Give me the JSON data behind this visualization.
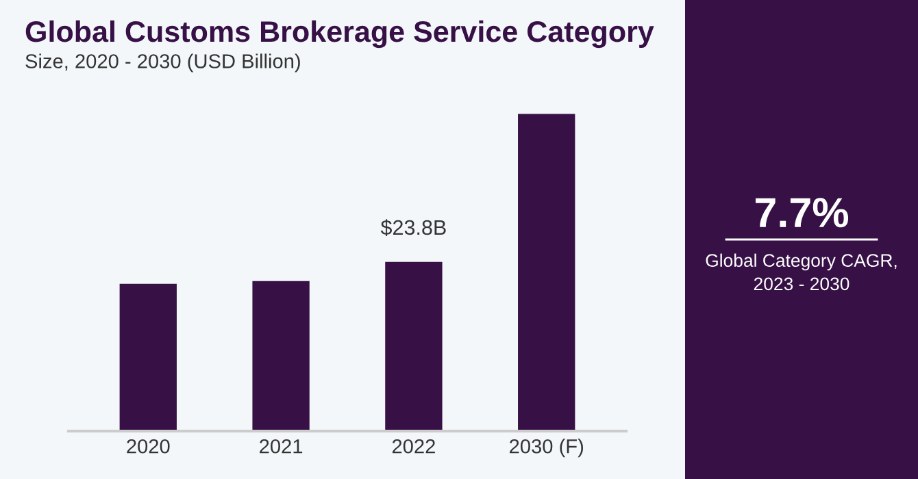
{
  "chart_data": {
    "type": "bar",
    "title": "Global Customs Brokerage Service Category",
    "subtitle": "Size, 2020 - 2030 (USD Billion)",
    "categories": [
      "2020",
      "2021",
      "2022",
      "2030 (F)"
    ],
    "values": [
      20.7,
      21.1,
      23.8,
      44.6
    ],
    "value_labels": [
      null,
      null,
      "$23.8B",
      null
    ],
    "color": "#371146",
    "tick_labels": "x",
    "grid": false,
    "legend": false,
    "annotations": [
      "7.7%",
      "Global Category CAGR,\n2023 - 2030"
    ]
  }
}
